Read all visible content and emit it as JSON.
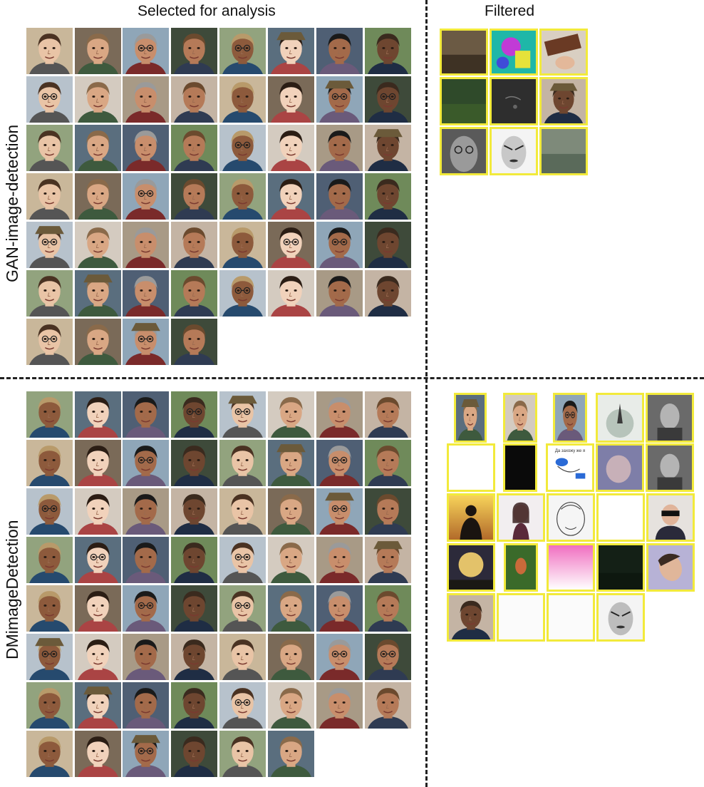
{
  "headers": {
    "selected": "Selected for analysis",
    "filtered": "Filtered"
  },
  "rows": {
    "gan": "GAN-image-detection",
    "dm": "DMimageDetection"
  },
  "tile_caption": "Да захожу же я"
}
